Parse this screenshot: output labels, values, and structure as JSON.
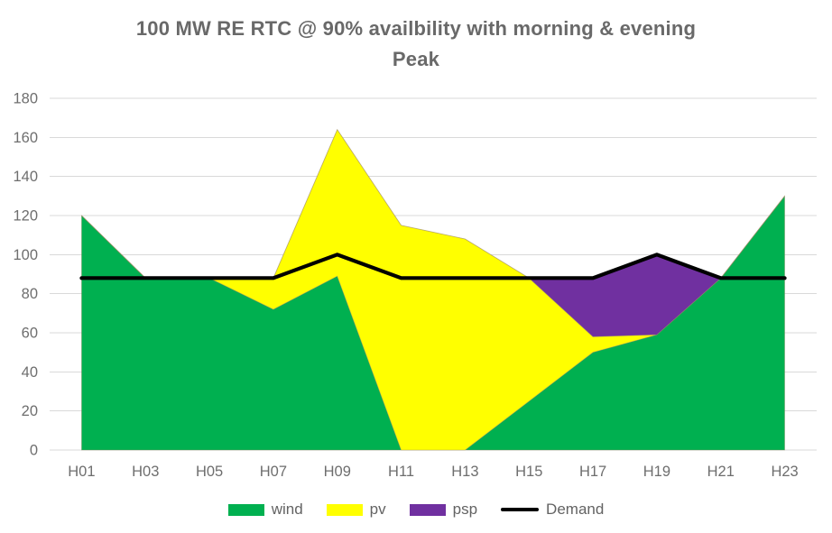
{
  "chart_data": {
    "type": "area",
    "stacked": true,
    "title": "100 MW RE RTC @ 90% availbility with morning & evening Peak",
    "title_lines": [
      "100 MW RE RTC @ 90% availbility with morning & evening",
      "Peak"
    ],
    "categories": [
      "H01",
      "H03",
      "H05",
      "H07",
      "H09",
      "H11",
      "H13",
      "H15",
      "H17",
      "H19",
      "H21",
      "H23"
    ],
    "series": [
      {
        "name": "wind",
        "kind": "area",
        "color": "#00B050",
        "values": [
          120,
          88,
          88,
          72,
          89,
          0,
          0,
          25,
          50,
          59,
          88,
          130
        ]
      },
      {
        "name": "pv",
        "kind": "area",
        "color": "#FFFF00",
        "values": [
          0,
          0,
          0,
          16,
          75,
          115,
          108,
          63,
          8,
          0,
          0,
          0
        ]
      },
      {
        "name": "psp",
        "kind": "area",
        "color": "#7030A0",
        "values": [
          0,
          0,
          0,
          0,
          0,
          0,
          0,
          0,
          30,
          41,
          0,
          0
        ]
      },
      {
        "name": "Demand",
        "kind": "line",
        "color": "#000000",
        "values": [
          88,
          88,
          88,
          88,
          100,
          88,
          88,
          88,
          88,
          100,
          88,
          88
        ]
      }
    ],
    "xlabel": "",
    "ylabel": "",
    "ylim": [
      0,
      180
    ],
    "ytick_step": 20,
    "grid": "horizontal-only",
    "gridline_color": "#D9D9D9",
    "tick_label_color": "#6e6e6e",
    "title_color": "#696969",
    "legend_position": "bottom",
    "background": "#FFFFFF"
  }
}
